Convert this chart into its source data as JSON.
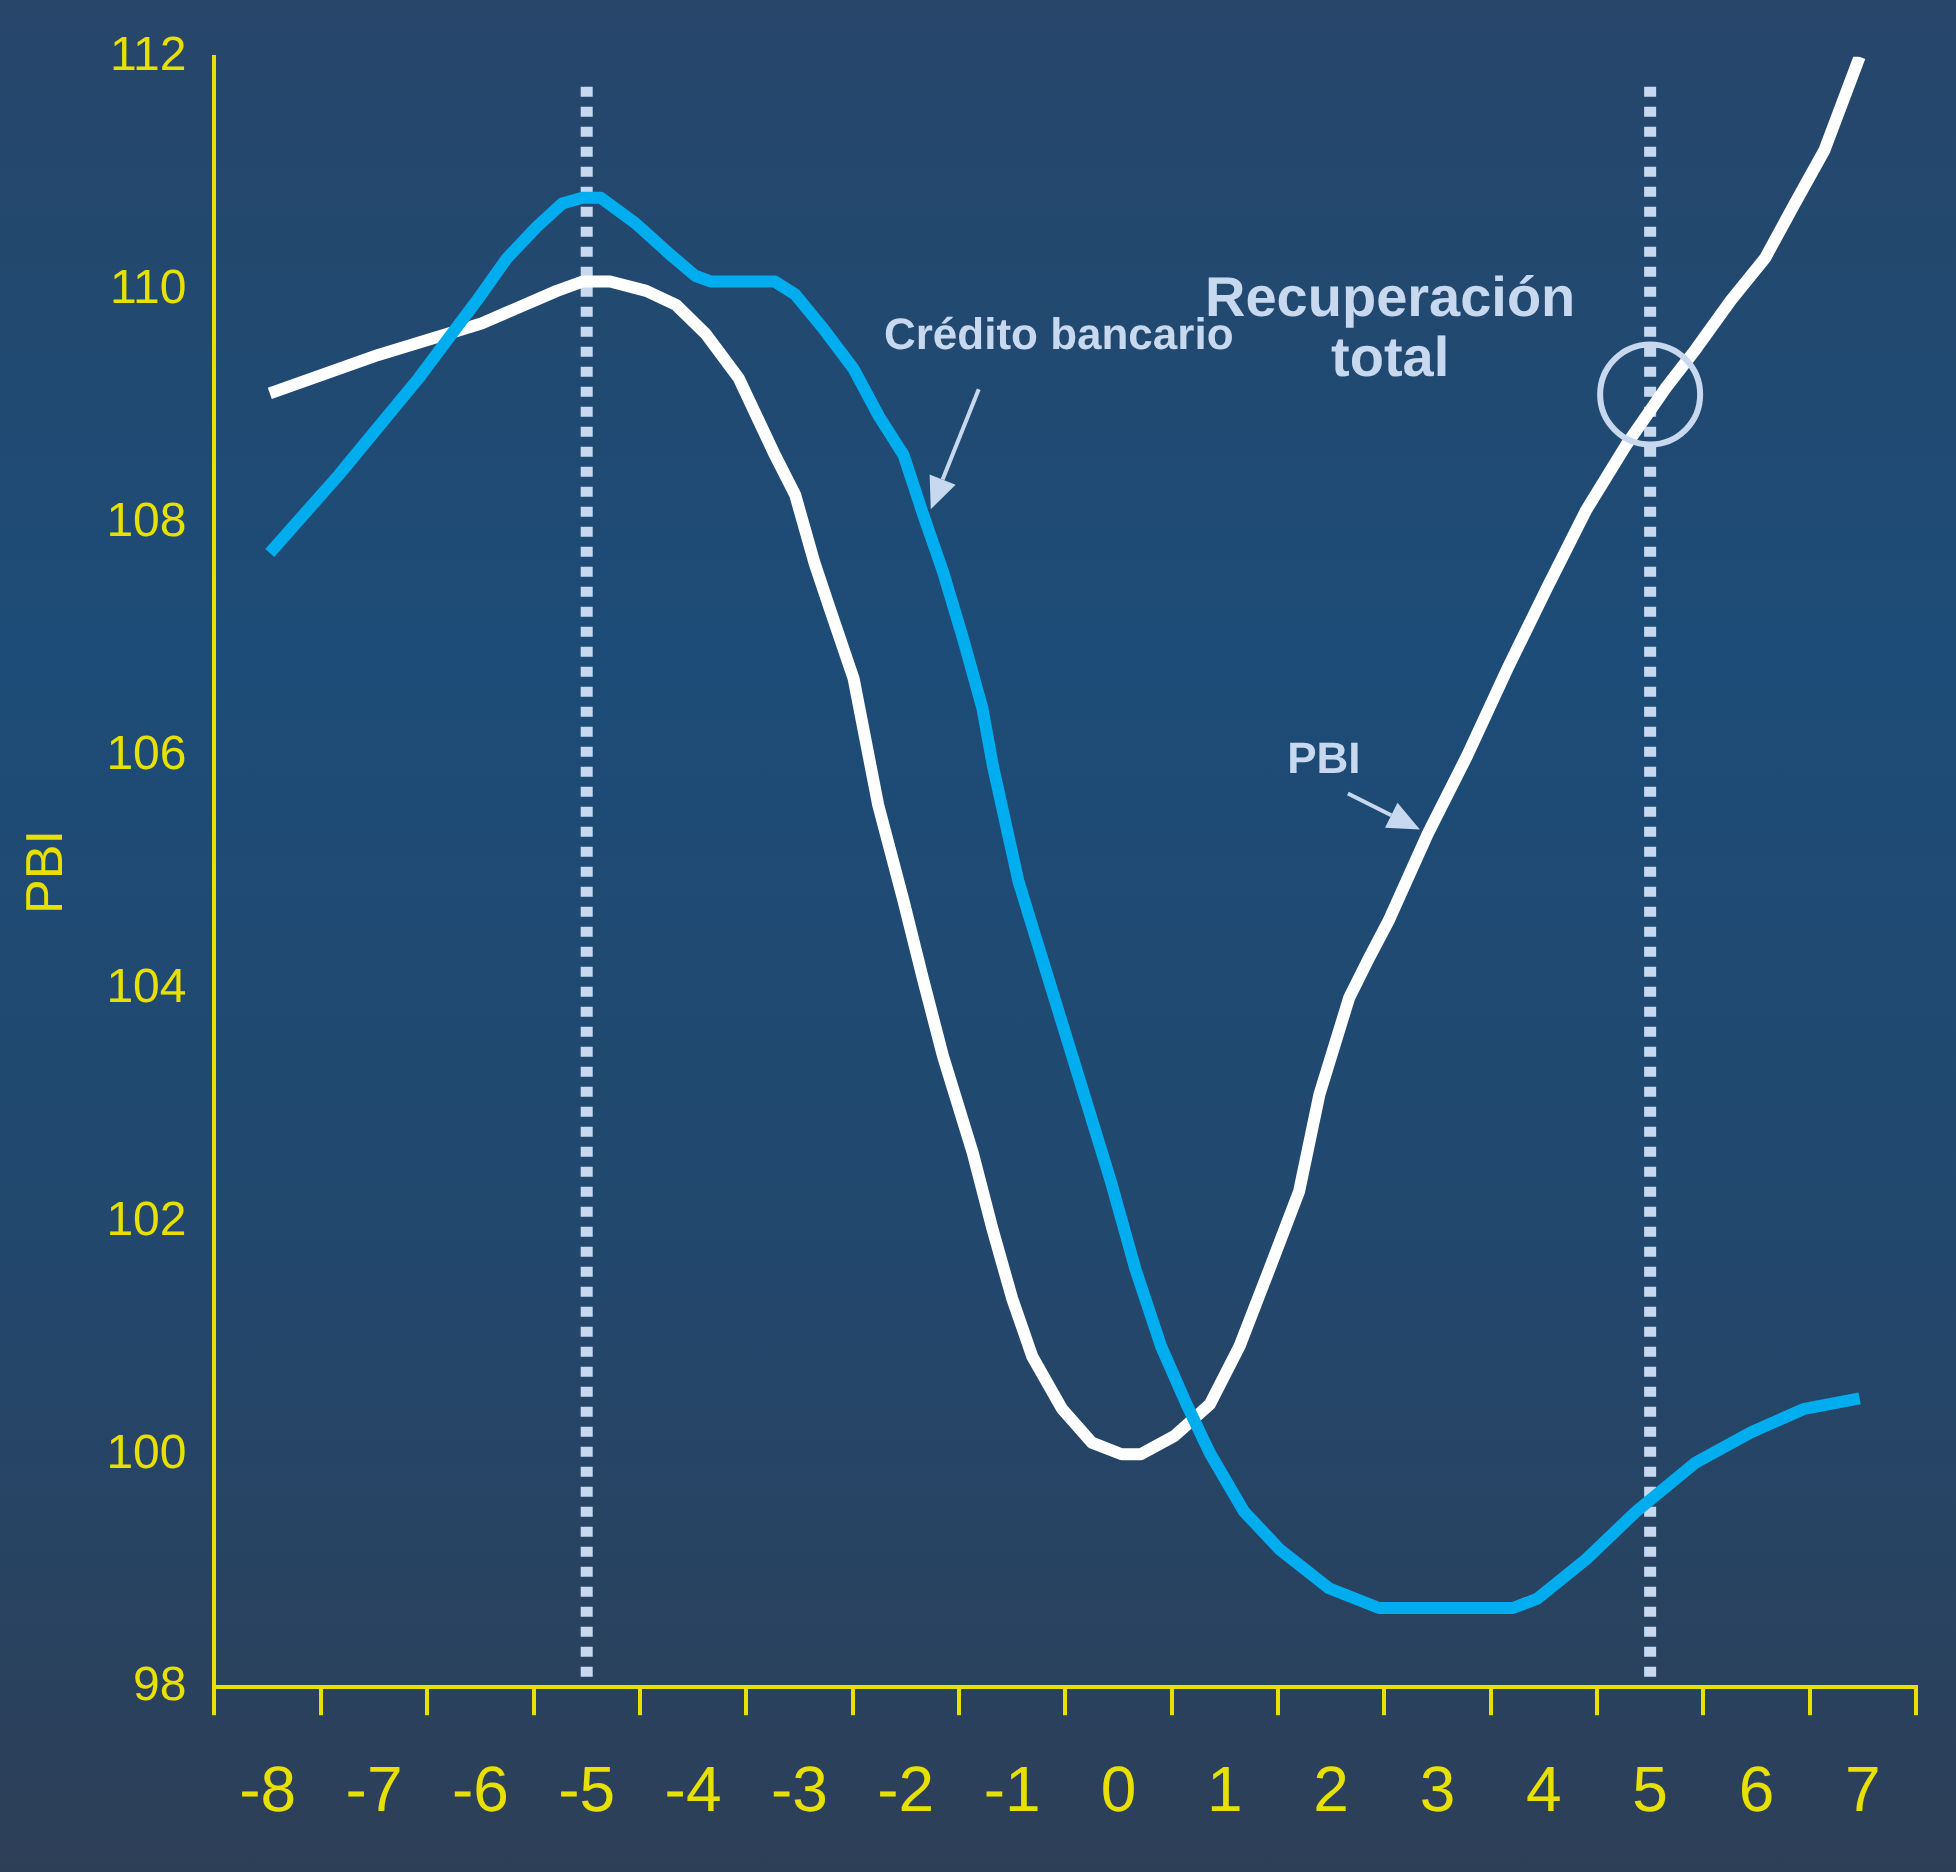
{
  "chart_data": {
    "type": "line",
    "ylabel": "PBI",
    "xlim": [
      -8.5,
      7.5
    ],
    "xticks": [
      {
        "value": -8.5,
        "label": null
      },
      -8,
      {
        "value": -7.5,
        "label": null
      },
      -7,
      {
        "value": -6.5,
        "label": null
      },
      -6,
      {
        "value": -5.5,
        "label": null
      },
      -5,
      {
        "value": -4.5,
        "label": null
      },
      -4,
      {
        "value": -3.5,
        "label": null
      },
      -3,
      {
        "value": -2.5,
        "label": null
      },
      -2,
      {
        "value": -1.5,
        "label": null
      },
      -1,
      {
        "value": -0.5,
        "label": null
      },
      0,
      {
        "value": 0.5,
        "label": null
      },
      1,
      {
        "value": 1.5,
        "label": null
      },
      2,
      {
        "value": 2.5,
        "label": null
      },
      3,
      {
        "value": 3.5,
        "label": null
      },
      4,
      {
        "value": 4.5,
        "label": null
      },
      5,
      {
        "value": 5.5,
        "label": null
      },
      6,
      {
        "value": 6.5,
        "label": null
      },
      7,
      {
        "value": 7.5,
        "label": null
      }
    ],
    "ylim": [
      98,
      112
    ],
    "yticks": [
      98,
      100,
      102,
      104,
      106,
      108,
      110,
      112
    ],
    "grid": false,
    "legend": false,
    "marker": "none",
    "line_style": "solid",
    "series": [
      {
        "name": "PBI",
        "color": "#ffffff",
        "x": [
          -7.98,
          -6.96,
          -5.99,
          -5.28,
          -5.04,
          -4.78,
          -4.44,
          -4.16,
          -3.88,
          -3.57,
          -3.23,
          -3.04,
          -2.86,
          -2.71,
          -2.49,
          -2.26,
          -2.02,
          -1.84,
          -1.65,
          -1.37,
          -1.18,
          -1.0,
          -0.81,
          -0.53,
          -0.25,
          0.03,
          0.21,
          0.53,
          0.86,
          1.14,
          1.42,
          1.7,
          1.89,
          2.17,
          2.35,
          2.54,
          2.91,
          3.28,
          3.66,
          4.03,
          4.4,
          4.77,
          5.15,
          5.43,
          5.76,
          6.08,
          6.36,
          6.64,
          6.97
        ],
        "values": [
          109.11,
          109.44,
          109.71,
          109.99,
          110.07,
          110.07,
          109.99,
          109.87,
          109.62,
          109.24,
          108.58,
          108.24,
          107.66,
          107.25,
          106.66,
          105.58,
          104.75,
          104.09,
          103.42,
          102.59,
          101.92,
          101.34,
          100.84,
          100.39,
          100.1,
          100.0,
          100.0,
          100.16,
          100.43,
          100.93,
          101.59,
          102.26,
          103.09,
          103.92,
          104.25,
          104.58,
          105.33,
          106.0,
          106.75,
          107.44,
          108.11,
          108.66,
          109.16,
          109.49,
          109.91,
          110.27,
          110.74,
          111.2,
          112.0
        ]
      },
      {
        "name": "Crédito bancario",
        "color": "#00aeef",
        "x": [
          -7.98,
          -7.33,
          -6.96,
          -6.58,
          -6.03,
          -5.75,
          -5.47,
          -5.23,
          -5.04,
          -4.87,
          -4.54,
          -4.2,
          -3.98,
          -3.83,
          -3.23,
          -3.04,
          -2.77,
          -2.49,
          -2.25,
          -2.02,
          -1.84,
          -1.65,
          -1.46,
          -1.28,
          -1.18,
          -0.94,
          -0.63,
          -0.35,
          -0.07,
          0.16,
          0.4,
          0.64,
          0.86,
          1.18,
          1.52,
          1.98,
          2.45,
          2.91,
          3.71,
          3.94,
          4.4,
          4.87,
          5.43,
          5.95,
          6.45,
          6.97
        ],
        "values": [
          107.74,
          108.41,
          108.82,
          109.24,
          109.91,
          110.27,
          110.54,
          110.74,
          110.79,
          110.79,
          110.57,
          110.29,
          110.12,
          110.07,
          110.07,
          109.96,
          109.66,
          109.32,
          108.91,
          108.58,
          108.08,
          107.58,
          107.0,
          106.41,
          105.91,
          104.92,
          104.0,
          103.17,
          102.34,
          101.59,
          100.93,
          100.43,
          100.01,
          99.51,
          99.18,
          98.85,
          98.68,
          98.68,
          98.68,
          98.76,
          99.1,
          99.51,
          99.93,
          100.19,
          100.39,
          100.48
        ]
      }
    ],
    "ref_lines": [
      {
        "axis": "x",
        "value": -5,
        "label": null,
        "color": "#c8d8ee",
        "line_style": "dotted"
      },
      {
        "axis": "x",
        "value": 5,
        "label": null,
        "color": "#c8d8ee",
        "line_style": "dotted"
      }
    ],
    "annotations": [
      {
        "text": "Recuperación total",
        "x": 5,
        "y": 109.1
      }
    ]
  }
}
